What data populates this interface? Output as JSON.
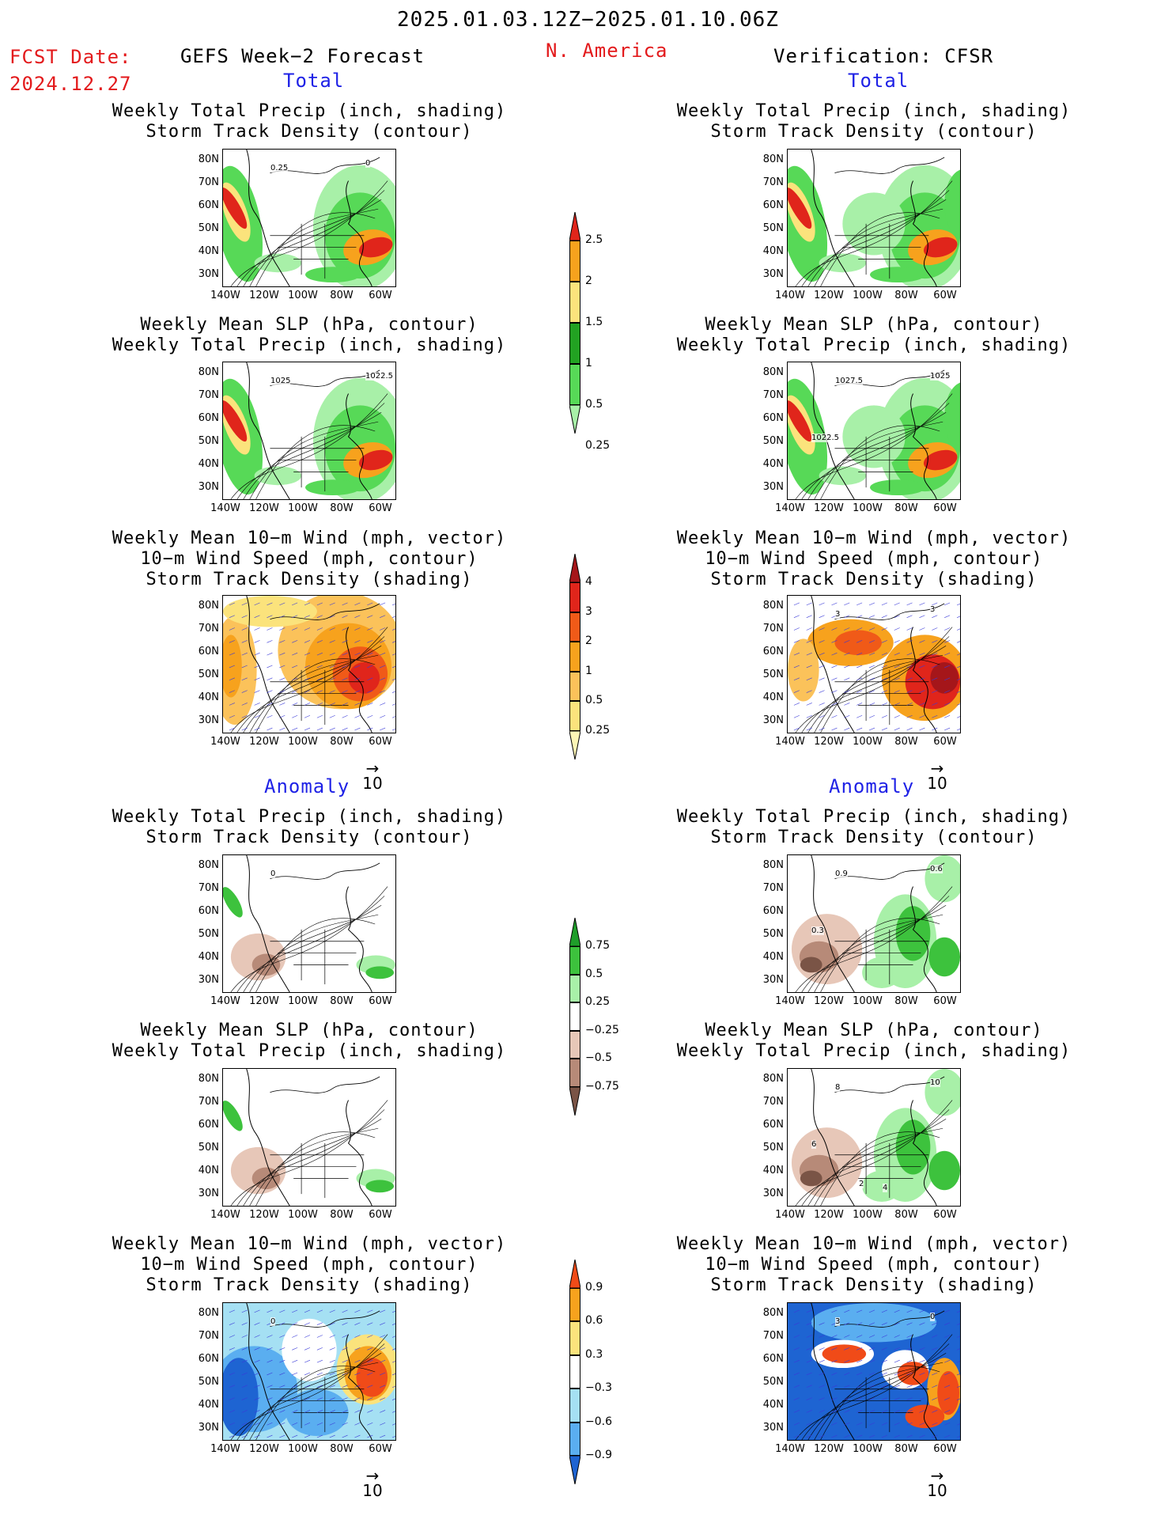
{
  "header": {
    "period": "2025.01.03.12Z−2025.01.10.06Z",
    "fcst_label": "FCST Date:",
    "fcst_date": "2024.12.27",
    "left_title": "GEFS Week−2 Forecast",
    "region": "N. America",
    "right_title": "Verification: CFSR"
  },
  "sections": {
    "total": "Total",
    "anomaly": "Anomaly"
  },
  "panel_titles": {
    "precip": [
      "Weekly Total Precip (inch, shading)",
      "Storm Track Density (contour)"
    ],
    "slp": [
      "Weekly Mean SLP (hPa, contour)",
      "Weekly Total Precip (inch, shading)"
    ],
    "wind": [
      "Weekly Mean 10−m Wind (mph, vector)",
      "10−m Wind Speed (mph, contour)",
      "Storm Track Density (shading)"
    ]
  },
  "axes": {
    "lat": [
      "80N",
      "70N",
      "60N",
      "50N",
      "40N",
      "30N"
    ],
    "lon": [
      "140W",
      "120W",
      "100W",
      "80W",
      "60W"
    ]
  },
  "vector_ref": "10",
  "colorbars": {
    "precip_total": {
      "ticks": [
        "2.5",
        "2",
        "1.5",
        "1",
        "0.5",
        "0.25"
      ],
      "colors": [
        "#e0251b",
        "#f7a21d",
        "#fbe37c",
        "#22a222",
        "#57d957",
        "#a8f0a8"
      ]
    },
    "storm_total": {
      "ticks": [
        "4",
        "3",
        "2",
        "1",
        "0.5",
        "0.25"
      ],
      "colors": [
        "#a5161a",
        "#e0251b",
        "#f05a18",
        "#f7a21d",
        "#fbc25a",
        "#fbe37c",
        "#fdf6b6"
      ]
    },
    "precip_anom": {
      "ticks": [
        "0.75",
        "0.5",
        "0.25",
        "−0.25",
        "−0.5",
        "−0.75"
      ],
      "colors": [
        "#1f9e2a",
        "#3dc23d",
        "#a8f0a8",
        "#ffffff",
        "#e7c7b8",
        "#b78a78",
        "#7a5446"
      ]
    },
    "storm_anom": {
      "ticks": [
        "0.9",
        "0.6",
        "0.3",
        "−0.3",
        "−0.6",
        "−0.9"
      ],
      "colors": [
        "#f04b18",
        "#f7a21d",
        "#fbe37c",
        "#ffffff",
        "#a5e0f3",
        "#5aaef0",
        "#1e64d2"
      ]
    }
  },
  "contour_labels": {
    "r1_left": [
      "0.25",
      "0"
    ],
    "r2_left": [
      "1025",
      "1022.5"
    ],
    "r2_right": [
      "1027.5",
      "1025",
      "1022.5"
    ],
    "r3_right": [
      "3",
      "3"
    ],
    "r4_left": [
      "0"
    ],
    "r4_right": [
      "0.9",
      "0.6",
      "0.3"
    ],
    "r5_right": [
      "8",
      "10",
      "6",
      "2",
      "4"
    ],
    "r6_left": [
      "0"
    ],
    "r6_right": [
      "3",
      "0"
    ]
  }
}
